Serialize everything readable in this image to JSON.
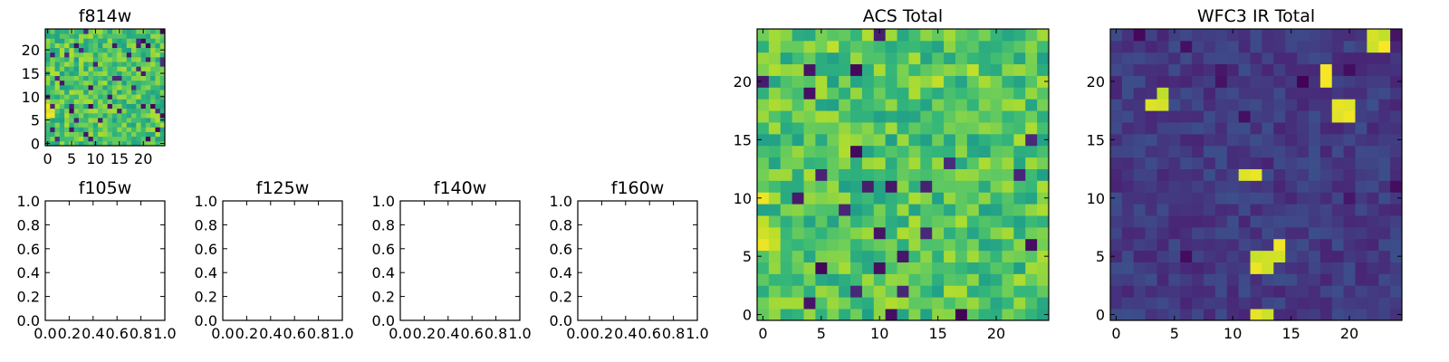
{
  "chart_data": [
    {
      "type": "heatmap",
      "id": "f814w",
      "title": "f814w",
      "colormap": "viridis",
      "rows": 25,
      "cols": 25,
      "xlim": [
        -0.5,
        24.5
      ],
      "ylim": [
        -0.5,
        24.5
      ],
      "xticks": [
        0,
        5,
        10,
        15,
        20
      ],
      "yticks": [
        0,
        5,
        10,
        15,
        20
      ],
      "xtick_labels": [
        "0",
        "5",
        "10",
        "15",
        "20"
      ],
      "ytick_labels": [
        "0",
        "5",
        "10",
        "15",
        "20"
      ],
      "value_range": [
        0,
        1
      ],
      "seed": 814,
      "mean": 0.72,
      "spread": 0.16,
      "low_frac": 0.05,
      "hot_spots": [
        [
          0,
          6
        ],
        [
          0,
          7
        ],
        [
          1,
          6
        ],
        [
          0,
          8
        ],
        [
          1,
          7
        ]
      ],
      "hot_regions": []
    },
    {
      "type": "heatmap",
      "id": "f105w",
      "title": "f105w",
      "empty": true,
      "xlim": [
        0,
        1
      ],
      "ylim": [
        0,
        1
      ],
      "xticks": [
        0.0,
        0.2,
        0.4,
        0.6,
        0.8,
        1.0
      ],
      "yticks": [
        0.0,
        0.2,
        0.4,
        0.6,
        0.8,
        1.0
      ],
      "xtick_labels": [
        "0.0",
        "0.2",
        "0.4",
        "0.6",
        "0.8",
        "1.0"
      ],
      "ytick_labels": [
        "0.0",
        "0.2",
        "0.4",
        "0.6",
        "0.8",
        "1.0"
      ]
    },
    {
      "type": "heatmap",
      "id": "f125w",
      "title": "f125w",
      "empty": true,
      "xlim": [
        0,
        1
      ],
      "ylim": [
        0,
        1
      ],
      "xticks": [
        0.0,
        0.2,
        0.4,
        0.6,
        0.8,
        1.0
      ],
      "yticks": [
        0.0,
        0.2,
        0.4,
        0.6,
        0.8,
        1.0
      ],
      "xtick_labels": [
        "0.0",
        "0.2",
        "0.4",
        "0.6",
        "0.8",
        "1.0"
      ],
      "ytick_labels": [
        "0.0",
        "0.2",
        "0.4",
        "0.6",
        "0.8",
        "1.0"
      ]
    },
    {
      "type": "heatmap",
      "id": "f140w",
      "title": "f140w",
      "empty": true,
      "xlim": [
        0,
        1
      ],
      "ylim": [
        0,
        1
      ],
      "xticks": [
        0.0,
        0.2,
        0.4,
        0.6,
        0.8,
        1.0
      ],
      "yticks": [
        0.0,
        0.2,
        0.4,
        0.6,
        0.8,
        1.0
      ],
      "xtick_labels": [
        "0.0",
        "0.2",
        "0.4",
        "0.6",
        "0.8",
        "1.0"
      ],
      "ytick_labels": [
        "0.0",
        "0.2",
        "0.4",
        "0.6",
        "0.8",
        "1.0"
      ]
    },
    {
      "type": "heatmap",
      "id": "f160w",
      "title": "f160w",
      "empty": true,
      "xlim": [
        0,
        1
      ],
      "ylim": [
        0,
        1
      ],
      "xticks": [
        0.0,
        0.2,
        0.4,
        0.6,
        0.8,
        1.0
      ],
      "yticks": [
        0.0,
        0.2,
        0.4,
        0.6,
        0.8,
        1.0
      ],
      "xtick_labels": [
        "0.0",
        "0.2",
        "0.4",
        "0.6",
        "0.8",
        "1.0"
      ],
      "ytick_labels": [
        "0.0",
        "0.2",
        "0.4",
        "0.6",
        "0.8",
        "1.0"
      ]
    },
    {
      "type": "heatmap",
      "id": "acs-total",
      "title": "ACS Total",
      "colormap": "viridis",
      "rows": 25,
      "cols": 25,
      "xlim": [
        -0.5,
        24.5
      ],
      "ylim": [
        -0.5,
        24.5
      ],
      "xticks": [
        0,
        5,
        10,
        15,
        20
      ],
      "yticks": [
        0,
        5,
        10,
        15,
        20
      ],
      "xtick_labels": [
        "0",
        "5",
        "10",
        "15",
        "20"
      ],
      "ytick_labels": [
        "0",
        "5",
        "10",
        "15",
        "20"
      ],
      "value_range": [
        0,
        1
      ],
      "seed": 42,
      "mean": 0.72,
      "spread": 0.16,
      "low_frac": 0.05,
      "hot_spots": [
        [
          0,
          6
        ],
        [
          0,
          7
        ],
        [
          1,
          6
        ],
        [
          0,
          8
        ],
        [
          1,
          7
        ],
        [
          0,
          10
        ],
        [
          6,
          23
        ],
        [
          15,
          20
        ],
        [
          18,
          21
        ]
      ],
      "hot_regions": []
    },
    {
      "type": "heatmap",
      "id": "wfc3-ir-total",
      "title": "WFC3 IR Total",
      "colormap": "viridis",
      "rows": 25,
      "cols": 25,
      "xlim": [
        -0.5,
        24.5
      ],
      "ylim": [
        -0.5,
        24.5
      ],
      "xticks": [
        0,
        5,
        10,
        15,
        20
      ],
      "yticks": [
        0,
        5,
        10,
        15,
        20
      ],
      "xtick_labels": [
        "0",
        "5",
        "10",
        "15",
        "20"
      ],
      "ytick_labels": [
        "0",
        "5",
        "10",
        "15",
        "20"
      ],
      "value_range": [
        0,
        1
      ],
      "seed": 160,
      "mean": 0.17,
      "spread": 0.07,
      "low_frac": 0.04,
      "hot_spots": [
        [
          22,
          24
        ],
        [
          23,
          24
        ],
        [
          22,
          23
        ],
        [
          23,
          23
        ],
        [
          18,
          21
        ],
        [
          18,
          20
        ],
        [
          3,
          18
        ],
        [
          4,
          18
        ],
        [
          4,
          19
        ],
        [
          19,
          18
        ],
        [
          20,
          18
        ],
        [
          19,
          17
        ],
        [
          20,
          17
        ],
        [
          11,
          12
        ],
        [
          12,
          12
        ],
        [
          12,
          5
        ],
        [
          13,
          5
        ],
        [
          12,
          4
        ],
        [
          13,
          4
        ],
        [
          14,
          5
        ],
        [
          14,
          6
        ],
        [
          12,
          0
        ],
        [
          13,
          0
        ]
      ],
      "hot_regions": []
    }
  ]
}
